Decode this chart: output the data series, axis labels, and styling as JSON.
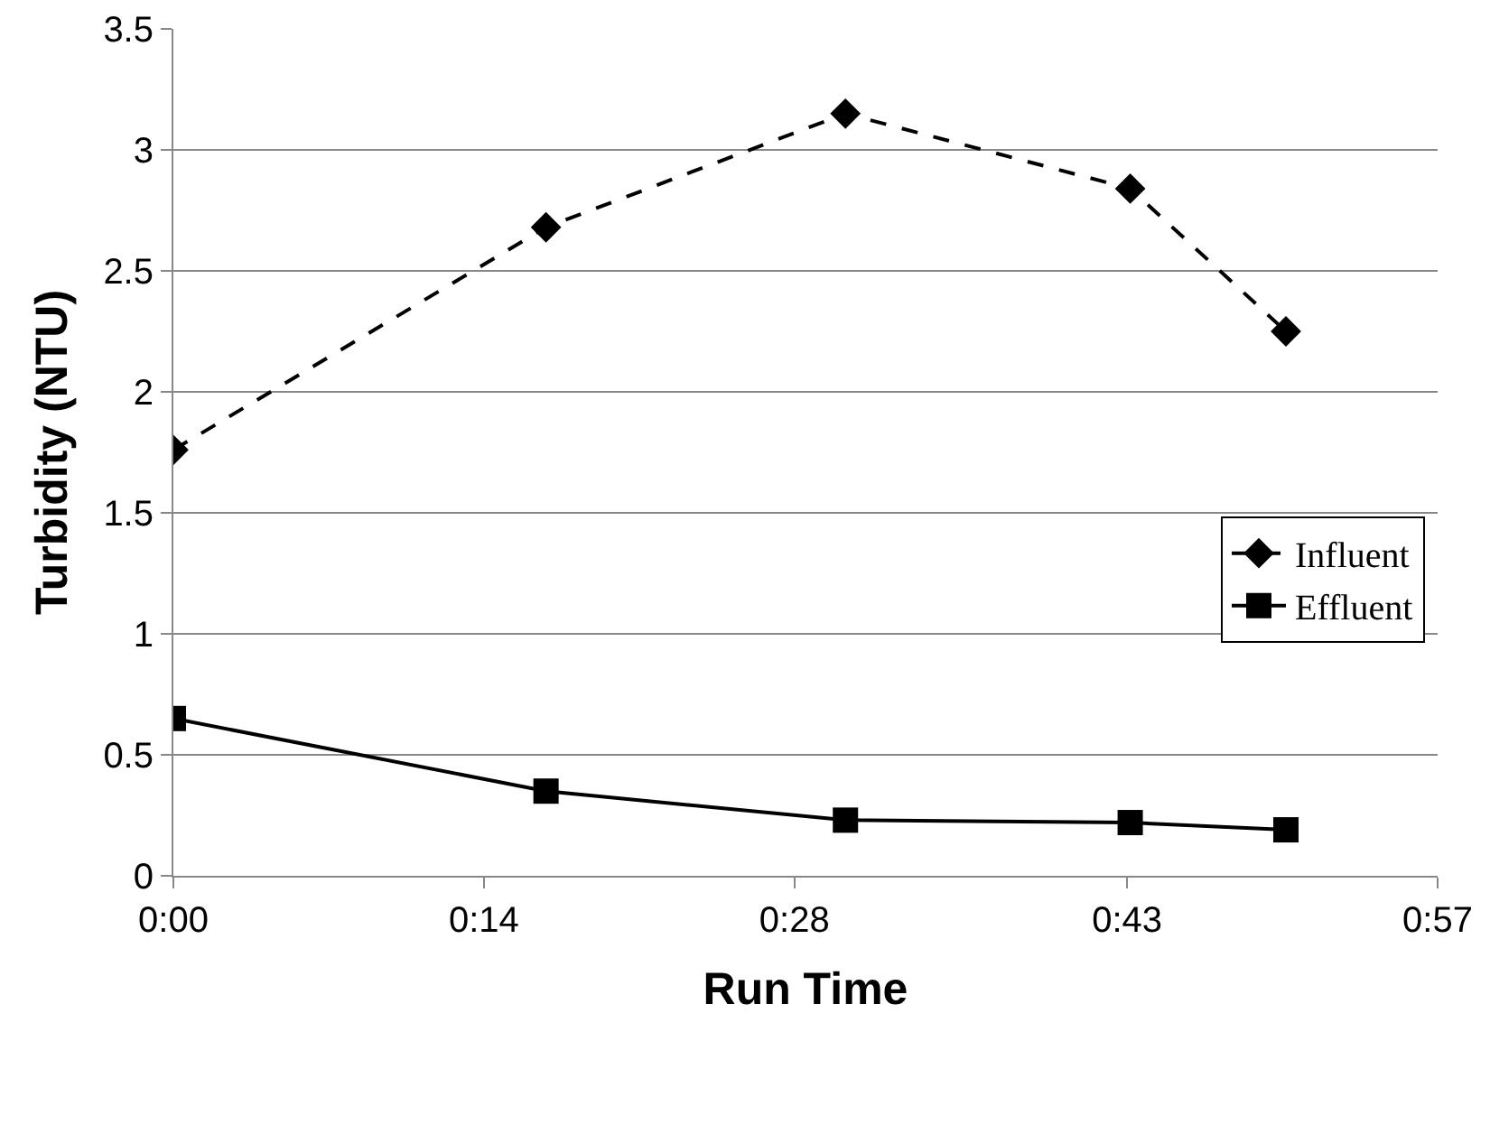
{
  "chart_data": {
    "type": "line",
    "xlabel": "Run Time",
    "ylabel": "Turbidity (NTU)",
    "x": [
      0,
      0.28,
      0.505,
      0.719,
      0.836
    ],
    "series": [
      {
        "name": "Influent",
        "color": "#000000",
        "values": [
          1.76,
          2.68,
          3.15,
          2.84,
          2.25
        ],
        "marker": "diamond",
        "line_style": "dashed"
      },
      {
        "name": "Effluent",
        "color": "#000000",
        "values": [
          0.65,
          0.35,
          0.23,
          0.22,
          0.19
        ],
        "marker": "square",
        "line_style": "solid"
      }
    ],
    "xlim": [
      0,
      0.95
    ],
    "xticks": [
      {
        "value": 0,
        "label": "0:00"
      },
      {
        "value": 0.2333,
        "label": "0:14"
      },
      {
        "value": 0.4667,
        "label": "0:28"
      },
      {
        "value": 0.7167,
        "label": "0:43"
      },
      {
        "value": 0.95,
        "label": "0:57"
      }
    ],
    "ylim": [
      0,
      3.5
    ],
    "yticks": [
      0,
      0.5,
      1,
      1.5,
      2,
      2.5,
      3,
      3.5
    ],
    "grid": "y",
    "legend": "right"
  }
}
